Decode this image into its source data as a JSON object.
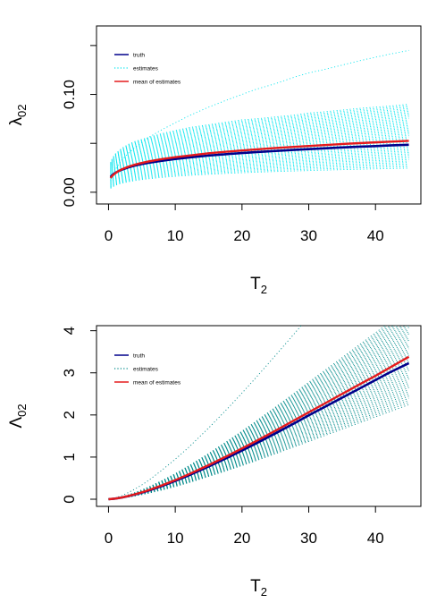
{
  "colors": {
    "truth": "#00008B",
    "estimates_top": "#00E5EE",
    "estimates_bottom": "#008B8B",
    "mean": "#E41A1C",
    "axes": "#000000"
  },
  "chart_data": [
    {
      "type": "line",
      "ylabel_base": "λ",
      "ylabel_sub": "02",
      "xlabel_base": "T",
      "xlabel_sub": "2",
      "xlim": [
        -1.8,
        46.8
      ],
      "ylim": [
        -0.012,
        0.17
      ],
      "xticks": [
        0,
        10,
        20,
        30,
        40
      ],
      "xtick_labels": [
        "0",
        "10",
        "20",
        "30",
        "40"
      ],
      "yticks": [
        0,
        0.05,
        0.1,
        0.15
      ],
      "ytick_labels": [
        "0.00",
        "",
        "0.10",
        ""
      ],
      "grid": false,
      "legend_position": "top-left",
      "legend": [
        "truth",
        "estimates",
        "mean of estimates"
      ],
      "x": [
        0.3,
        0.6,
        1,
        1.5,
        2,
        3,
        4,
        5,
        6,
        8,
        10,
        12,
        15,
        18,
        20,
        22,
        25,
        28,
        30,
        32,
        35,
        38,
        40,
        42,
        45
      ],
      "series": [
        {
          "name": "truth",
          "values": [
            0.0155,
            0.0177,
            0.0197,
            0.0216,
            0.0231,
            0.0255,
            0.0273,
            0.0288,
            0.0301,
            0.0322,
            0.034,
            0.0355,
            0.0375,
            0.0391,
            0.0401,
            0.041,
            0.0422,
            0.0434,
            0.0441,
            0.0448,
            0.0458,
            0.0467,
            0.0472,
            0.0478,
            0.0485
          ]
        },
        {
          "name": "mean of estimates",
          "values": [
            0.0145,
            0.0171,
            0.0194,
            0.0217,
            0.0235,
            0.0262,
            0.0283,
            0.03,
            0.0315,
            0.0339,
            0.0358,
            0.0375,
            0.0398,
            0.0416,
            0.0427,
            0.0437,
            0.0452,
            0.0465,
            0.0473,
            0.0481,
            0.0493,
            0.0503,
            0.051,
            0.0516,
            0.0525
          ]
        }
      ],
      "estimates_envelope": {
        "upper_values": [
          0.03,
          0.035,
          0.039,
          0.042,
          0.045,
          0.049,
          0.052,
          0.054,
          0.056,
          0.06,
          0.063,
          0.066,
          0.069,
          0.072,
          0.074,
          0.075,
          0.077,
          0.079,
          0.081,
          0.082,
          0.084,
          0.086,
          0.087,
          0.088,
          0.09
        ],
        "lower_values": [
          0.004,
          0.0055,
          0.007,
          0.0083,
          0.0093,
          0.0108,
          0.012,
          0.013,
          0.0138,
          0.0152,
          0.0163,
          0.0172,
          0.0184,
          0.0194,
          0.02,
          0.0205,
          0.0212,
          0.0218,
          0.0222,
          0.0226,
          0.0231,
          0.0236,
          0.0239,
          0.0242,
          0.0246
        ]
      },
      "estimates_outlier": {
        "values": [
          0.012,
          0.017,
          0.023,
          0.028,
          0.033,
          0.04,
          0.046,
          0.051,
          0.056,
          0.064,
          0.071,
          0.078,
          0.087,
          0.095,
          0.1,
          0.105,
          0.111,
          0.118,
          0.122,
          0.125,
          0.13,
          0.135,
          0.138,
          0.141,
          0.145
        ]
      }
    },
    {
      "type": "line",
      "ylabel_base": "Λ",
      "ylabel_sub": "02",
      "xlabel_base": "T",
      "xlabel_sub": "2",
      "xlim": [
        -1.8,
        46.8
      ],
      "ylim": [
        -0.17,
        4.12
      ],
      "xticks": [
        0,
        10,
        20,
        30,
        40
      ],
      "xtick_labels": [
        "0",
        "10",
        "20",
        "30",
        "40"
      ],
      "yticks": [
        0,
        1,
        2,
        3,
        4
      ],
      "ytick_labels": [
        "0",
        "1",
        "2",
        "3",
        "4"
      ],
      "grid": false,
      "legend_position": "top-left",
      "legend": [
        "truth",
        "estimates",
        "mean of estimates"
      ],
      "x": [
        0,
        1,
        2,
        3,
        4,
        5,
        6,
        8,
        10,
        12,
        15,
        18,
        20,
        22,
        25,
        28,
        30,
        32,
        35,
        38,
        40,
        42,
        45
      ],
      "series": [
        {
          "name": "truth",
          "values": [
            0,
            0.014,
            0.04,
            0.074,
            0.113,
            0.157,
            0.205,
            0.313,
            0.434,
            0.564,
            0.775,
            1.0,
            1.155,
            1.315,
            1.562,
            1.815,
            1.99,
            2.158,
            2.41,
            2.66,
            2.83,
            3.0,
            3.23
          ]
        },
        {
          "name": "mean of estimates",
          "values": [
            0,
            0.015,
            0.042,
            0.078,
            0.119,
            0.165,
            0.215,
            0.328,
            0.453,
            0.59,
            0.81,
            1.044,
            1.206,
            1.372,
            1.627,
            1.888,
            2.064,
            2.238,
            2.5,
            2.76,
            2.93,
            3.11,
            3.38
          ]
        }
      ],
      "estimates_envelope": {
        "upper_values": [
          0,
          0.02,
          0.056,
          0.104,
          0.158,
          0.22,
          0.287,
          0.44,
          0.606,
          0.79,
          1.085,
          1.4,
          1.615,
          1.84,
          2.185,
          2.535,
          2.775,
          3.01,
          3.36,
          3.715,
          3.95,
          4.19,
          4.54
        ],
        "lower_values": [
          0,
          0.01,
          0.028,
          0.052,
          0.079,
          0.11,
          0.143,
          0.219,
          0.301,
          0.392,
          0.54,
          0.694,
          0.8,
          0.91,
          1.081,
          1.254,
          1.371,
          1.489,
          1.663,
          1.838,
          1.955,
          2.072,
          2.245
        ]
      },
      "estimates_outlier": {
        "values": [
          0,
          0.03,
          0.085,
          0.16,
          0.245,
          0.34,
          0.445,
          0.69,
          0.95,
          1.23,
          1.69,
          2.18,
          2.52,
          2.87,
          3.41,
          3.96,
          4.33,
          4.7,
          5.26,
          5.82,
          6.19,
          6.56,
          7.12
        ]
      }
    }
  ]
}
